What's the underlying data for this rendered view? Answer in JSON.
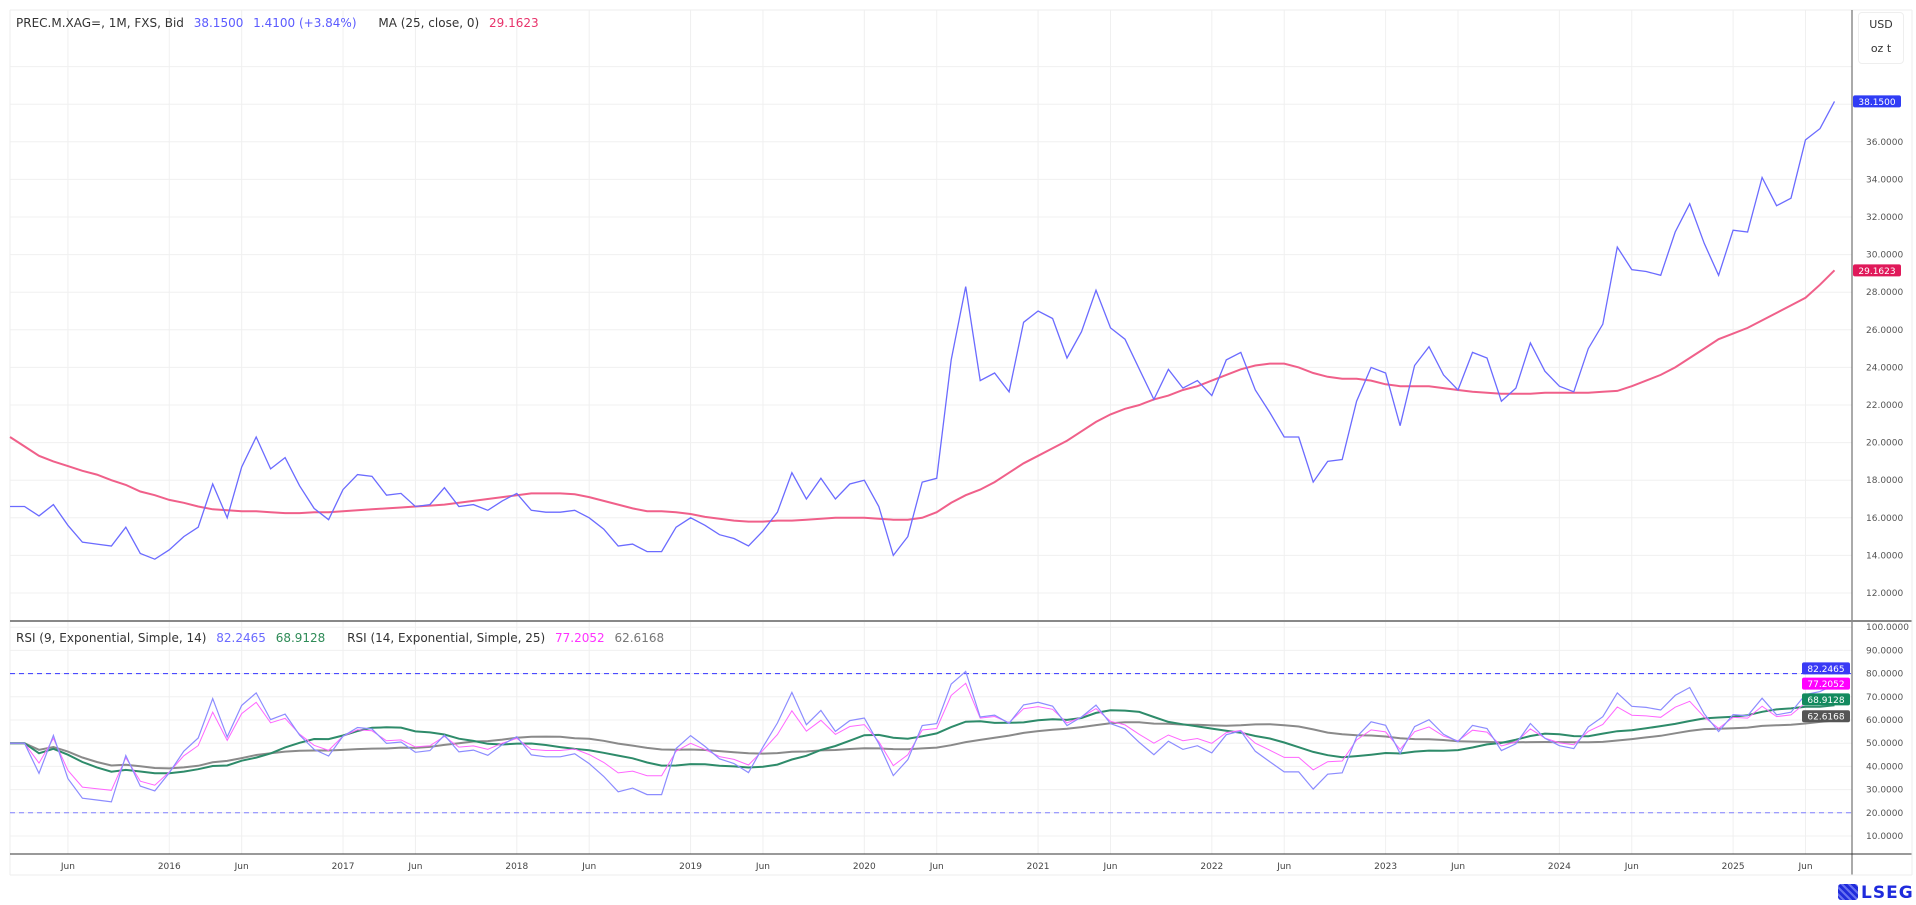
{
  "header": {
    "symbol_info": "PREC.M.XAG=, 1M, FXS, Bid",
    "last": "38.1500",
    "change": "1.4100 (+3.84%)",
    "ma_label": "MA (25, close, 0)",
    "ma_value": "29.1623"
  },
  "rsi_legend": {
    "rsi1_label": "RSI (9, Exponential, Simple, 14)",
    "rsi1_value": "82.2465",
    "rsi1_signal": "68.9128",
    "rsi2_label": "RSI (14, Exponential, Simple, 25)",
    "rsi2_value": "77.2052",
    "rsi2_signal": "62.6168"
  },
  "axis": {
    "currency": "USD",
    "unit": "oz t"
  },
  "logo": "LSEG",
  "colors": {
    "price": "#6b6bff",
    "ma": "#f0608a",
    "price_label": "#2f3cf5",
    "ma_label": "#e0195a",
    "rsi1": "#8c8cff",
    "rsi1_signal": "#2e8b6a",
    "rsi2": "#ff66ff",
    "rsi2_signal": "#8a8a8a",
    "rsi1_label": "#3a3af5",
    "rsi2_label": "#ff00ff",
    "rsi1_signal_label": "#138a5e",
    "rsi2_signal_label": "#555555"
  },
  "chart_data": [
    {
      "type": "line",
      "title": "PREC.M.XAG=, 1M, FXS, Bid",
      "x_start": "2015-02",
      "x_end": "2025-08",
      "frequency": "monthly",
      "ylim": [
        11,
        40
      ],
      "yticks": [
        "12.0000",
        "14.0000",
        "16.0000",
        "18.0000",
        "20.0000",
        "22.0000",
        "24.0000",
        "26.0000",
        "28.0000",
        "30.0000",
        "32.0000",
        "34.0000",
        "36.0000"
      ],
      "grid": true,
      "scale_position": "right",
      "series": [
        {
          "name": "PREC.M.XAG=",
          "values": [
            16.6,
            16.6,
            16.1,
            16.7,
            15.6,
            14.7,
            14.6,
            14.5,
            15.5,
            14.1,
            13.8,
            14.3,
            15.0,
            15.5,
            17.8,
            16.0,
            18.7,
            20.3,
            18.6,
            19.2,
            17.7,
            16.5,
            15.9,
            17.5,
            18.3,
            18.2,
            17.2,
            17.3,
            16.6,
            16.7,
            17.6,
            16.6,
            16.7,
            16.4,
            16.9,
            17.3,
            16.4,
            16.3,
            16.3,
            16.4,
            16.0,
            15.4,
            14.5,
            14.6,
            14.2,
            14.2,
            15.5,
            16.0,
            15.6,
            15.1,
            14.9,
            14.5,
            15.3,
            16.3,
            18.4,
            17.0,
            18.1,
            17.0,
            17.8,
            18.0,
            16.6,
            14.0,
            15.0,
            17.9,
            18.1,
            24.4,
            28.3,
            23.3,
            23.7,
            22.7,
            26.4,
            27.0,
            26.6,
            24.5,
            25.9,
            28.1,
            26.1,
            25.5,
            23.9,
            22.3,
            23.9,
            22.9,
            23.3,
            22.5,
            24.4,
            24.8,
            22.8,
            21.6,
            20.3,
            20.3,
            17.9,
            19.0,
            19.1,
            22.2,
            24.0,
            23.7,
            20.9,
            24.1,
            25.1,
            23.6,
            22.8,
            24.8,
            24.5,
            22.2,
            22.9,
            25.3,
            23.8,
            23.0,
            22.7,
            25.0,
            26.3,
            30.4,
            29.2,
            29.1,
            28.9,
            31.2,
            32.7,
            30.6,
            28.9,
            31.3,
            31.2,
            34.1,
            32.6,
            33.0,
            36.1,
            36.7,
            38.15
          ]
        },
        {
          "name": "MA (25, close, 0)",
          "values": [
            20.3,
            19.8,
            19.3,
            19.0,
            18.75,
            18.5,
            18.3,
            18.0,
            17.75,
            17.4,
            17.2,
            16.95,
            16.8,
            16.6,
            16.45,
            16.4,
            16.35,
            16.35,
            16.3,
            16.25,
            16.25,
            16.3,
            16.3,
            16.35,
            16.4,
            16.45,
            16.5,
            16.55,
            16.6,
            16.65,
            16.7,
            16.8,
            16.9,
            17.0,
            17.1,
            17.2,
            17.3,
            17.3,
            17.3,
            17.25,
            17.1,
            16.9,
            16.7,
            16.5,
            16.35,
            16.35,
            16.3,
            16.2,
            16.05,
            15.95,
            15.85,
            15.8,
            15.8,
            15.85,
            15.85,
            15.9,
            15.95,
            16.0,
            16.0,
            16.0,
            15.95,
            15.9,
            15.9,
            16.0,
            16.3,
            16.8,
            17.2,
            17.5,
            17.9,
            18.4,
            18.9,
            19.3,
            19.7,
            20.1,
            20.6,
            21.1,
            21.5,
            21.8,
            22.0,
            22.3,
            22.5,
            22.8,
            23.0,
            23.3,
            23.6,
            23.9,
            24.1,
            24.2,
            24.2,
            24.0,
            23.7,
            23.5,
            23.4,
            23.4,
            23.3,
            23.1,
            23.0,
            23.0,
            23.0,
            22.9,
            22.8,
            22.7,
            22.65,
            22.6,
            22.6,
            22.6,
            22.65,
            22.65,
            22.65,
            22.65,
            22.7,
            22.75,
            23.0,
            23.3,
            23.6,
            24.0,
            24.5,
            25.0,
            25.5,
            25.8,
            26.1,
            26.5,
            26.9,
            27.3,
            27.7,
            28.4,
            29.1623
          ]
        }
      ],
      "last_labels": [
        {
          "series": "PREC.M.XAG=",
          "value": 38.15,
          "text": "38.1500"
        },
        {
          "series": "MA (25, close, 0)",
          "value": 29.1623,
          "text": "29.1623"
        }
      ]
    },
    {
      "type": "line",
      "title": "RSI",
      "ylim": [
        3,
        102
      ],
      "yticks": [
        "10.0000",
        "20.0000",
        "30.0000",
        "40.0000",
        "50.0000",
        "60.0000",
        "70.0000",
        "80.0000",
        "90.0000",
        "100.0000"
      ],
      "reference_lines": [
        80,
        20
      ],
      "indicators": [
        {
          "name": "RSI (9, Exponential, Simple, 14)",
          "period": 9,
          "signal_period": 14
        },
        {
          "name": "RSI (14, Exponential, Simple, 25)",
          "period": 14,
          "signal_period": 25
        }
      ],
      "last_labels": [
        {
          "value": 82.2465,
          "text": "82.2465"
        },
        {
          "value": 77.2052,
          "text": "77.2052"
        },
        {
          "value": 68.9128,
          "text": "68.9128"
        },
        {
          "value": 62.6168,
          "text": "62.6168"
        }
      ]
    }
  ],
  "time_axis": [
    {
      "label": "Jun",
      "date": "2015-06"
    },
    {
      "label": "2016",
      "date": "2016-01"
    },
    {
      "label": "Jun",
      "date": "2016-06"
    },
    {
      "label": "2017",
      "date": "2017-01"
    },
    {
      "label": "Jun",
      "date": "2017-06"
    },
    {
      "label": "2018",
      "date": "2018-01"
    },
    {
      "label": "Jun",
      "date": "2018-06"
    },
    {
      "label": "2019",
      "date": "2019-01"
    },
    {
      "label": "Jun",
      "date": "2019-06"
    },
    {
      "label": "2020",
      "date": "2020-01"
    },
    {
      "label": "Jun",
      "date": "2020-06"
    },
    {
      "label": "2021",
      "date": "2021-01"
    },
    {
      "label": "Jun",
      "date": "2021-06"
    },
    {
      "label": "2022",
      "date": "2022-01"
    },
    {
      "label": "Jun",
      "date": "2022-06"
    },
    {
      "label": "2023",
      "date": "2023-01"
    },
    {
      "label": "Jun",
      "date": "2023-06"
    },
    {
      "label": "2024",
      "date": "2024-01"
    },
    {
      "label": "Jun",
      "date": "2024-06"
    },
    {
      "label": "2025",
      "date": "2025-01"
    },
    {
      "label": "Jun",
      "date": "2025-06"
    }
  ]
}
